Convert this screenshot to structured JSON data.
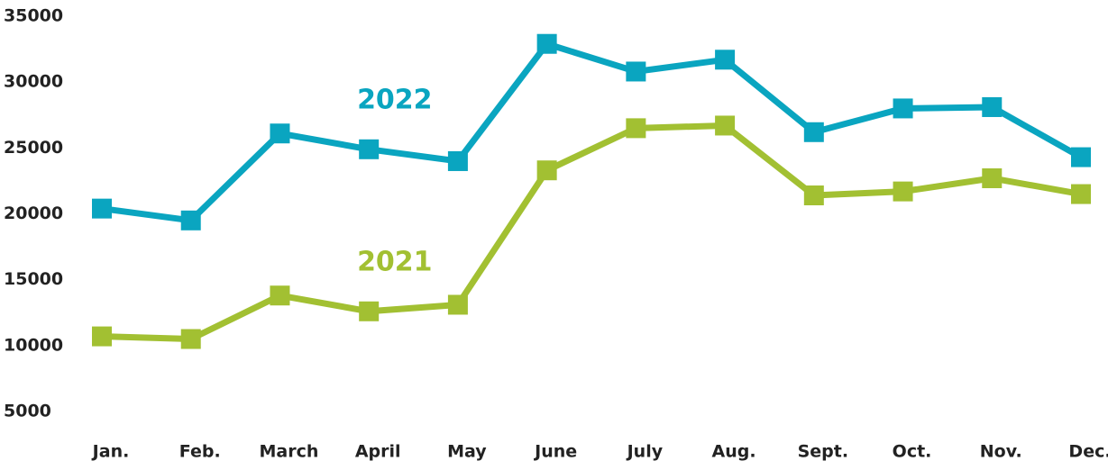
{
  "chart_data": {
    "type": "line",
    "categories": [
      "Jan.",
      "Feb.",
      "March",
      "April",
      "May",
      "June",
      "July",
      "Aug.",
      "Sept.",
      "Oct.",
      "Nov.",
      "Dec."
    ],
    "series": [
      {
        "name": "2022",
        "color": "#0aa5c0",
        "values": [
          20400,
          19500,
          26100,
          24900,
          24000,
          32900,
          30800,
          31700,
          26200,
          28000,
          28100,
          24300
        ]
      },
      {
        "name": "2021",
        "color": "#a2c032",
        "values": [
          10700,
          10500,
          13800,
          12600,
          13100,
          23300,
          26500,
          26700,
          21400,
          21700,
          22700,
          21500
        ]
      }
    ],
    "ylim": [
      5000,
      35000
    ],
    "yticks": [
      5000,
      10000,
      15000,
      20000,
      25000,
      30000,
      35000
    ],
    "grid": false
  }
}
